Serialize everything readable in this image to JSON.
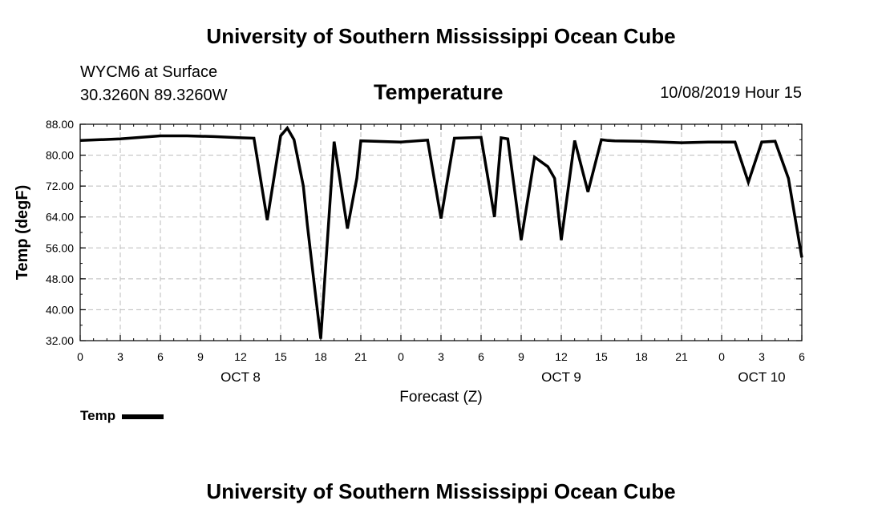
{
  "header": {
    "top_title": "University of Southern Mississippi Ocean Cube",
    "station_name": "WYCM6 at Surface",
    "station_coords": "30.3260N 89.3260W",
    "chart_title": "Temperature",
    "datetime": "10/08/2019 Hour 15"
  },
  "footer": {
    "bottom_title": "University of Southern Mississippi Ocean Cube"
  },
  "legend": {
    "label": "Temp",
    "color": "#000000"
  },
  "chart_data": {
    "type": "line",
    "title": "Temperature",
    "xlabel": "Forecast (Z)",
    "ylabel": "Temp (degF)",
    "ylim": [
      32,
      88
    ],
    "xlim": [
      0,
      54
    ],
    "yticks": [
      32,
      40,
      48,
      56,
      64,
      72,
      80,
      88
    ],
    "ytick_labels": [
      "32.00",
      "40.00",
      "48.00",
      "56.00",
      "64.00",
      "72.00",
      "80.00",
      "88.00"
    ],
    "xticks": [
      0,
      3,
      6,
      9,
      12,
      15,
      18,
      21,
      24,
      27,
      30,
      33,
      36,
      39,
      42,
      45,
      48,
      51,
      54
    ],
    "xtick_labels": [
      "0",
      "3",
      "6",
      "9",
      "12",
      "15",
      "18",
      "21",
      "0",
      "3",
      "6",
      "9",
      "12",
      "15",
      "18",
      "21",
      "0",
      "3",
      "6"
    ],
    "day_labels": [
      {
        "x": 12,
        "label": "OCT 8"
      },
      {
        "x": 36,
        "label": "OCT 9"
      },
      {
        "x": 51,
        "label": "OCT 10"
      }
    ],
    "grid": true,
    "series": [
      {
        "name": "Temp",
        "color": "#000000",
        "x": [
          0,
          3,
          6,
          8,
          10,
          12,
          13,
          14,
          15,
          15.5,
          16,
          16.7,
          17,
          17.5,
          18,
          19,
          20,
          20.7,
          21,
          24,
          26,
          27,
          28,
          30,
          31,
          31.5,
          32,
          33,
          34,
          35,
          35.5,
          36,
          37,
          38,
          39,
          39.5,
          40,
          42,
          45,
          47,
          49,
          50,
          51,
          52,
          53,
          54
        ],
        "y": [
          83.8,
          84.2,
          85.0,
          85.0,
          84.8,
          84.5,
          84.4,
          63.2,
          85.0,
          87.0,
          84.0,
          72.0,
          62.0,
          47.0,
          32.5,
          83.5,
          61.0,
          74.0,
          83.7,
          83.4,
          83.9,
          63.6,
          84.4,
          84.6,
          64.0,
          84.5,
          84.2,
          58.0,
          79.5,
          77.0,
          74.0,
          58.0,
          83.8,
          70.5,
          84.0,
          83.8,
          83.7,
          83.6,
          83.2,
          83.4,
          83.4,
          73.0,
          83.4,
          83.6,
          74.0,
          53.5
        ]
      }
    ]
  }
}
